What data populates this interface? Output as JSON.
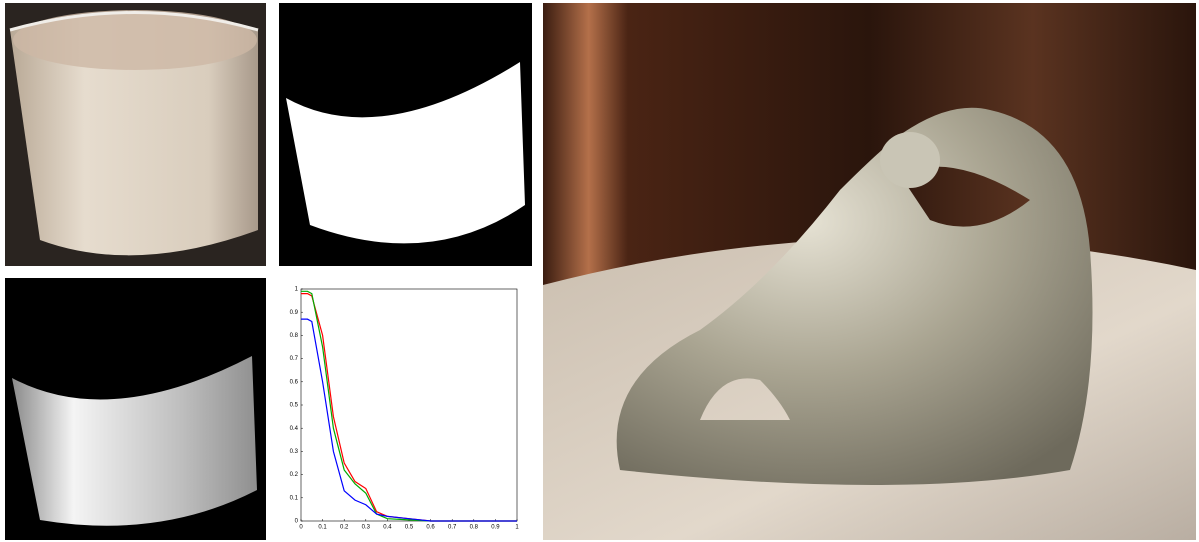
{
  "chart_data": {
    "type": "line",
    "x": [
      0,
      0.03,
      0.05,
      0.1,
      0.15,
      0.2,
      0.25,
      0.3,
      0.35,
      0.4,
      0.5,
      0.6,
      1
    ],
    "series": [
      {
        "color": "#ff0000",
        "values": [
          0.98,
          0.98,
          0.97,
          0.8,
          0.45,
          0.25,
          0.17,
          0.14,
          0.04,
          0.02,
          0.01,
          0,
          0
        ]
      },
      {
        "color": "#00aa00",
        "values": [
          0.99,
          0.99,
          0.98,
          0.75,
          0.4,
          0.22,
          0.16,
          0.12,
          0.03,
          0.01,
          0.005,
          0,
          0
        ]
      },
      {
        "color": "#0000ff",
        "values": [
          0.87,
          0.87,
          0.86,
          0.6,
          0.3,
          0.13,
          0.09,
          0.07,
          0.03,
          0.02,
          0.01,
          0,
          0
        ]
      }
    ],
    "xlim": [
      0,
      1
    ],
    "ylim": [
      0,
      1
    ],
    "xticks": [
      0,
      0.1,
      0.2,
      0.3,
      0.4,
      0.5,
      0.6,
      0.7,
      0.8,
      0.9,
      1
    ],
    "yticks": [
      0,
      0.1,
      0.2,
      0.3,
      0.4,
      0.5,
      0.6,
      0.7,
      0.8,
      0.9,
      1
    ]
  }
}
